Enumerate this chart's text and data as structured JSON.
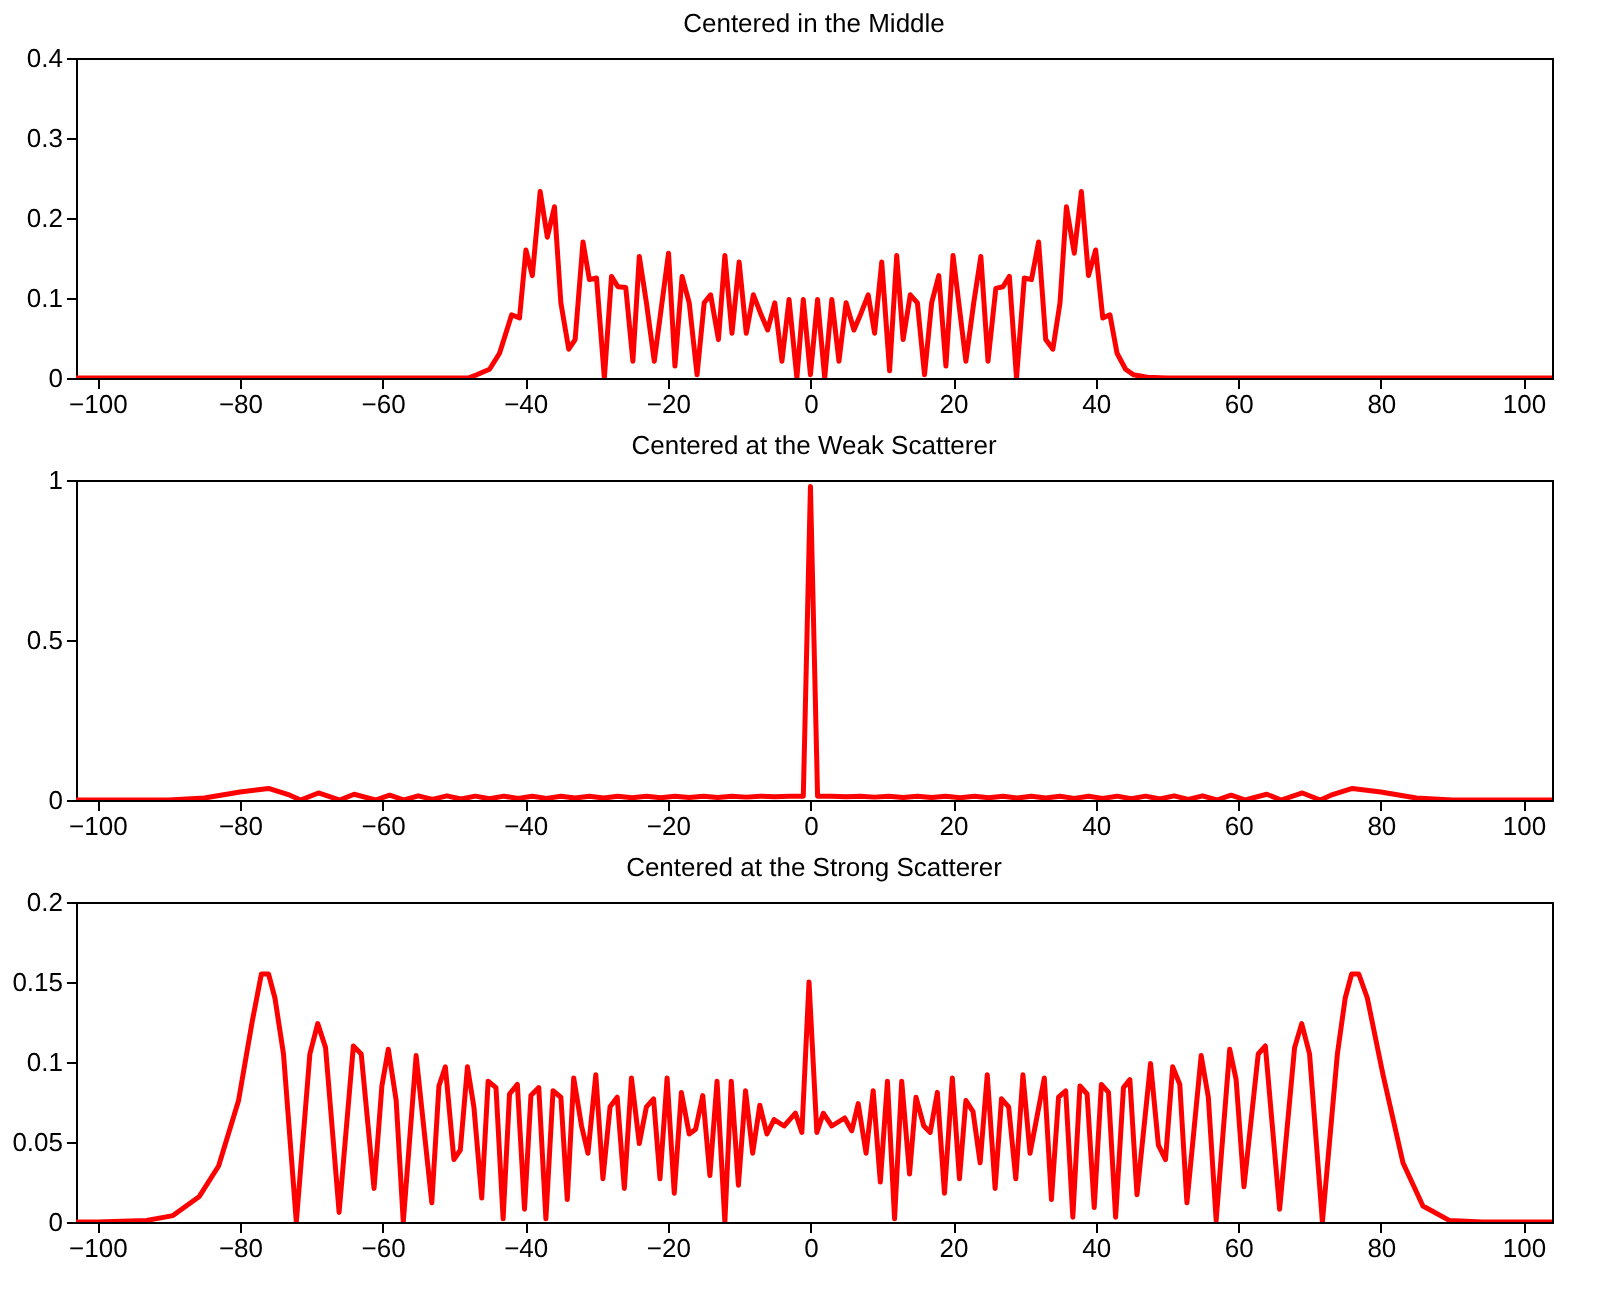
{
  "chart_data": [
    {
      "type": "line",
      "title": "Centered in the Middle",
      "xlim": [
        -103,
        104
      ],
      "xticks": [
        -100,
        -80,
        -60,
        -40,
        -20,
        0,
        20,
        40,
        60,
        80,
        100
      ],
      "ylim": [
        0,
        0.4
      ],
      "yticks": [
        0,
        0.1,
        0.2,
        0.3,
        0.4
      ],
      "grid": false,
      "line_style": "solid",
      "x": [
        -103,
        -48,
        -46.8,
        -45,
        -43.6,
        -41.9,
        -40.8,
        -39.9,
        -39,
        -37.9,
        -36.9,
        -35.9,
        -35,
        -33.9,
        -33,
        -31.9,
        -31,
        -30,
        -28.9,
        -27.9,
        -27,
        -25.9,
        -24.9,
        -24,
        -23,
        -21.9,
        -19.9,
        -19,
        -18,
        -17,
        -15.9,
        -14.9,
        -14,
        -12.9,
        -12,
        -11,
        -10,
        -9,
        -8,
        -7,
        -6,
        -5,
        -4,
        -3,
        -1.9,
        -1,
        0,
        1,
        2,
        3,
        4,
        5,
        6.1,
        7.1,
        8.1,
        9,
        10,
        11.1,
        12.1,
        13,
        14,
        15,
        16,
        17,
        18,
        19,
        20,
        21.8,
        22.9,
        23.9,
        24.9,
        26,
        27,
        27.9,
        28.9,
        30,
        31,
        32,
        33,
        34,
        35,
        35.9,
        37,
        38,
        39,
        40,
        41,
        42,
        43,
        44.2,
        45.3,
        47.2,
        50,
        104
      ],
      "series": [
        {
          "color": "#ff0000",
          "values": [
            0,
            0,
            0.004,
            0.011,
            0.031,
            0.079,
            0.075,
            0.16,
            0.128,
            0.233,
            0.176,
            0.214,
            0.094,
            0.036,
            0.048,
            0.17,
            0.123,
            0.125,
            0,
            0.127,
            0.114,
            0.113,
            0.021,
            0.152,
            0.094,
            0.021,
            0.156,
            0.015,
            0.127,
            0.094,
            0.004,
            0.094,
            0.104,
            0.048,
            0.153,
            0.056,
            0.145,
            0.056,
            0.104,
            0.081,
            0.06,
            0.094,
            0.021,
            0.098,
            0,
            0.098,
            0.004,
            0.098,
            0,
            0.098,
            0.021,
            0.094,
            0.06,
            0.081,
            0.104,
            0.056,
            0.145,
            0.009,
            0.153,
            0.048,
            0.104,
            0.094,
            0.004,
            0.094,
            0.128,
            0.015,
            0.153,
            0.021,
            0.094,
            0.152,
            0.021,
            0.112,
            0.114,
            0.127,
            0,
            0.125,
            0.123,
            0.17,
            0.048,
            0.036,
            0.094,
            0.214,
            0.156,
            0.233,
            0.128,
            0.16,
            0.075,
            0.079,
            0.031,
            0.011,
            0.004,
            0.001,
            0,
            0
          ]
        }
      ]
    },
    {
      "type": "line",
      "title": "Centered at the Weak Scatterer",
      "xlim": [
        -103,
        104
      ],
      "xticks": [
        -100,
        -80,
        -60,
        -40,
        -20,
        0,
        20,
        40,
        60,
        80,
        100
      ],
      "ylim": [
        0,
        1
      ],
      "yticks": [
        0,
        0.5,
        1
      ],
      "grid": false,
      "line_style": "solid",
      "x": [
        -103,
        -90,
        -85,
        -80,
        -76,
        -73,
        -71.5,
        -69,
        -66,
        -64,
        -61,
        -59,
        -57,
        -55,
        -53,
        -51,
        -49,
        -47,
        -45,
        -43,
        -41,
        -39,
        -37,
        -35,
        -33,
        -31,
        -29,
        -27,
        -25,
        -23,
        -21,
        -19,
        -17,
        -15,
        -13,
        -11,
        -9,
        -7,
        -5,
        -3,
        -1,
        0,
        1,
        3,
        5,
        7,
        9,
        11,
        13,
        15,
        17,
        19,
        21,
        23,
        25,
        27,
        29,
        31,
        33,
        35,
        37,
        39,
        41,
        43,
        45,
        47,
        49,
        51,
        53,
        55,
        57,
        59,
        61,
        64,
        66,
        69,
        71.5,
        73,
        76,
        80,
        85,
        90,
        104
      ],
      "series": [
        {
          "color": "#ff0000",
          "values": [
            0,
            0,
            0.006,
            0.025,
            0.036,
            0.015,
            0,
            0.022,
            0,
            0.018,
            0,
            0.015,
            0,
            0.013,
            0.002,
            0.013,
            0.003,
            0.012,
            0.004,
            0.012,
            0.005,
            0.012,
            0.005,
            0.012,
            0.006,
            0.012,
            0.006,
            0.012,
            0.007,
            0.012,
            0.007,
            0.012,
            0.008,
            0.012,
            0.008,
            0.012,
            0.009,
            0.012,
            0.01,
            0.012,
            0.012,
            0.98,
            0.012,
            0.012,
            0.01,
            0.012,
            0.009,
            0.012,
            0.008,
            0.012,
            0.008,
            0.012,
            0.007,
            0.012,
            0.007,
            0.012,
            0.006,
            0.012,
            0.006,
            0.012,
            0.005,
            0.012,
            0.005,
            0.012,
            0.004,
            0.012,
            0.003,
            0.013,
            0.002,
            0.013,
            0,
            0.015,
            0,
            0.018,
            0,
            0.022,
            0,
            0.015,
            0.036,
            0.025,
            0.006,
            0,
            0
          ]
        }
      ]
    },
    {
      "type": "line",
      "title": "Centered at the Strong Scatterer",
      "xlim": [
        -103,
        104
      ],
      "xticks": [
        -100,
        -80,
        -60,
        -40,
        -20,
        0,
        20,
        40,
        60,
        80,
        100
      ],
      "ylim": [
        0,
        0.2
      ],
      "yticks": [
        0,
        0.05,
        0.1,
        0.15,
        0.2
      ],
      "grid": false,
      "line_style": "solid",
      "x": [
        -103,
        -100,
        -93.1,
        -89.4,
        -85.7,
        -83,
        -80.2,
        -78.3,
        -77,
        -76,
        -75.1,
        -73.9,
        -72.1,
        -70.2,
        -69.1,
        -68,
        -66.1,
        -64.1,
        -63,
        -61.2,
        -60.1,
        -59.2,
        -58.1,
        -57.1,
        -55.3,
        -53.1,
        -52.1,
        -51.2,
        -50,
        -49.1,
        -48.1,
        -47.2,
        -46.1,
        -45.2,
        -44.1,
        -43.1,
        -42.2,
        -41.1,
        -40.1,
        -39.2,
        -38.1,
        -37.1,
        -36.1,
        -35,
        -34.1,
        -33.2,
        -32.1,
        -31.2,
        -30.1,
        -29.1,
        -28.1,
        -27.1,
        -26.1,
        -25.1,
        -24,
        -23,
        -22,
        -21.1,
        -20.1,
        -19.1,
        -18.1,
        -17,
        -16.1,
        -15.1,
        -14.1,
        -13.1,
        -12,
        -11.1,
        -10.1,
        -9.1,
        -8.1,
        -7.1,
        -6.1,
        -5.1,
        -3.7,
        -2.1,
        -1.2,
        -0.2,
        0.9,
        1.8,
        3,
        4.8,
        5.8,
        6.7,
        7.8,
        8.8,
        9.8,
        10.8,
        11.8,
        12.8,
        13.9,
        14.8,
        15.9,
        16.8,
        17.8,
        18.8,
        19.9,
        20.9,
        21.8,
        22.8,
        23.8,
        24.8,
        25.9,
        26.8,
        27.8,
        28.8,
        29.8,
        30.8,
        32.8,
        33.8,
        34.8,
        35.8,
        36.8,
        37.8,
        38.8,
        39.8,
        40.8,
        41.8,
        42.8,
        43.9,
        44.8,
        45.8,
        47.7,
        48.8,
        49.8,
        50.8,
        51.8,
        52.8,
        54.8,
        55.8,
        56.9,
        58.8,
        59.7,
        60.8,
        62.8,
        63.8,
        65.8,
        67.9,
        68.9,
        70,
        71.8,
        73.9,
        75,
        75.9,
        76.9,
        78.1,
        80.3,
        83.1,
        85.9,
        89.6,
        94.2,
        104
      ],
      "series": [
        {
          "color": "#ff0000",
          "values": [
            0,
            0,
            0.001,
            0.004,
            0.016,
            0.035,
            0.076,
            0.125,
            0.155,
            0.155,
            0.14,
            0.105,
            0,
            0.105,
            0.124,
            0.109,
            0.006,
            0.11,
            0.105,
            0.021,
            0.085,
            0.108,
            0.076,
            0,
            0.104,
            0.012,
            0.085,
            0.097,
            0.039,
            0.045,
            0.097,
            0.072,
            0.015,
            0.088,
            0.084,
            0.002,
            0.08,
            0.086,
            0.008,
            0.079,
            0.084,
            0.002,
            0.082,
            0.078,
            0.014,
            0.09,
            0.06,
            0.043,
            0.092,
            0.027,
            0.072,
            0.078,
            0.021,
            0.09,
            0.049,
            0.072,
            0.077,
            0.027,
            0.09,
            0.018,
            0.081,
            0.055,
            0.058,
            0.079,
            0.029,
            0.088,
            0,
            0.088,
            0.023,
            0.082,
            0.043,
            0.073,
            0.055,
            0.064,
            0.06,
            0.068,
            0.056,
            0.15,
            0.056,
            0.068,
            0.06,
            0.065,
            0.057,
            0.074,
            0.043,
            0.082,
            0.025,
            0.088,
            0.002,
            0.088,
            0.03,
            0.078,
            0.06,
            0.056,
            0.081,
            0.018,
            0.09,
            0.027,
            0.076,
            0.069,
            0.037,
            0.092,
            0.021,
            0.077,
            0.072,
            0.027,
            0.092,
            0.043,
            0.09,
            0.014,
            0.078,
            0.082,
            0.003,
            0.085,
            0.08,
            0.009,
            0.086,
            0.081,
            0.003,
            0.084,
            0.089,
            0.017,
            0.099,
            0.048,
            0.039,
            0.097,
            0.086,
            0.012,
            0.104,
            0.078,
            0.001,
            0.108,
            0.089,
            0.022,
            0.105,
            0.11,
            0.008,
            0.109,
            0.124,
            0.105,
            0,
            0.105,
            0.14,
            0.155,
            0.155,
            0.14,
            0.092,
            0.037,
            0.01,
            0.001,
            0,
            0
          ]
        }
      ]
    }
  ]
}
